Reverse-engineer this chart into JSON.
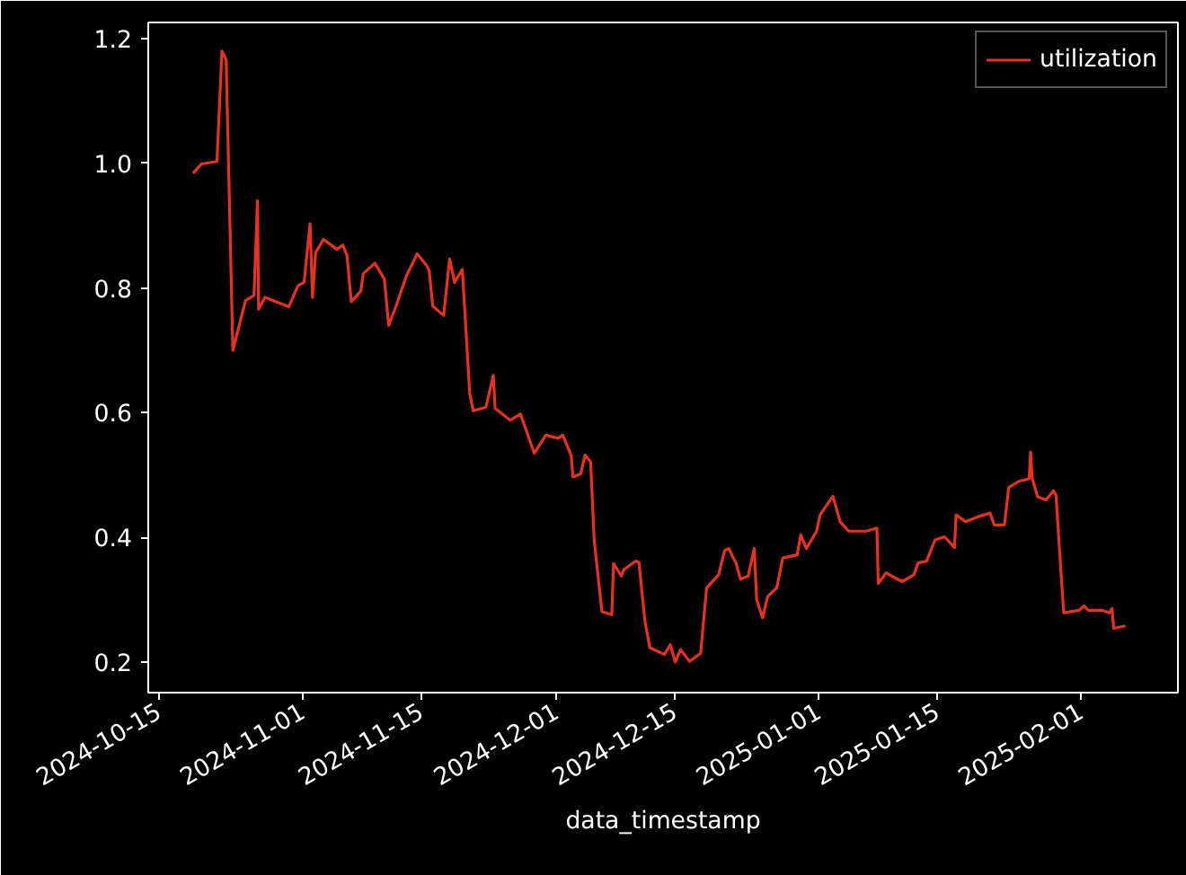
{
  "chart_data": {
    "type": "line",
    "xlabel": "data_timestamp",
    "legend": "top right",
    "grid": false,
    "line_style": "solid",
    "xlim": [
      "2024-10-13T19:00",
      "2025-02-12T12:00"
    ],
    "ylim": [
      0.151,
      1.226
    ],
    "xticks": [
      "2024-10-15",
      "2024-11-01",
      "2024-11-15",
      "2024-12-01",
      "2024-12-15",
      "2025-01-01",
      "2025-01-15",
      "2025-02-01"
    ],
    "yticks": [
      {
        "value": 0.2,
        "label": "0.2"
      },
      {
        "value": 0.4,
        "label": "0.4"
      },
      {
        "value": 0.6,
        "label": "0.6"
      },
      {
        "value": 0.8,
        "label": "0.8"
      },
      {
        "value": 1.0,
        "label": "1.0"
      },
      {
        "value": 1.2,
        "label": "1.2"
      }
    ],
    "x": [
      "2024-10-19T02:00",
      "2024-10-20T02:00",
      "2024-10-21T22:00",
      "2024-10-22T12:00",
      "2024-10-23T00:00",
      "2024-10-23T19:00",
      "2024-10-24T10:00",
      "2024-10-25T07:00",
      "2024-10-26T07:00",
      "2024-10-26T17:00",
      "2024-10-26T20:00",
      "2024-10-27T14:00",
      "2024-10-30T10:00",
      "2024-10-31T12:00",
      "2024-11-01T05:00",
      "2024-11-01T22:00",
      "2024-11-02T05:00",
      "2024-11-02T14:00",
      "2024-11-03T12:00",
      "2024-11-05T02:00",
      "2024-11-05T19:00",
      "2024-11-06T07:00",
      "2024-11-06T19:00",
      "2024-11-07T22:00",
      "2024-11-08T05:00",
      "2024-11-09T14:00",
      "2024-11-10T17:00",
      "2024-11-11T05:00",
      "2024-11-12T02:00",
      "2024-11-13T07:00",
      "2024-11-14T14:00",
      "2024-11-15T17:00",
      "2024-11-16T00:00",
      "2024-11-16T10:00",
      "2024-11-17T17:00",
      "2024-11-18T10:00",
      "2024-11-19T00:00",
      "2024-11-19T22:00",
      "2024-11-20T19:00",
      "2024-11-21T05:00",
      "2024-11-22T17:00",
      "2024-11-23T14:00",
      "2024-11-23T19:00",
      "2024-11-25T14:00",
      "2024-11-26T19:00",
      "2024-11-28T10:00",
      "2024-11-29T19:00",
      "2024-12-01T05:00",
      "2024-12-01T19:00",
      "2024-12-02T19:00",
      "2024-12-03T00:00",
      "2024-12-03T22:00",
      "2024-12-04T10:00",
      "2024-12-05T02:00",
      "2024-12-05T12:00",
      "2024-12-06T10:00",
      "2024-12-07T14:00",
      "2024-12-07T19:00",
      "2024-12-08T17:00",
      "2024-12-09T00:00",
      "2024-12-10T10:00",
      "2024-12-10T19:00",
      "2024-12-11T12:00",
      "2024-12-12T02:00",
      "2024-12-13T19:00",
      "2024-12-14T12:00",
      "2024-12-15T02:00",
      "2024-12-15T17:00",
      "2024-12-16T19:00",
      "2024-12-18T02:00",
      "2024-12-18T19:00",
      "2024-12-20T05:00",
      "2024-12-20T22:00",
      "2024-12-21T10:00",
      "2024-12-22T07:00",
      "2024-12-22T19:00",
      "2024-12-23T17:00",
      "2024-12-24T10:00",
      "2024-12-24T17:00",
      "2024-12-25T10:00",
      "2024-12-26T00:00",
      "2024-12-27T02:00",
      "2024-12-27T19:00",
      "2024-12-29T12:00",
      "2024-12-29T22:00",
      "2024-12-30T14:00",
      "2024-12-31T19:00",
      "2025-01-01T05:00",
      "2025-01-02T17:00",
      "2025-01-03T14:00",
      "2025-01-04T14:00",
      "2025-01-06T17:00",
      "2025-01-07T22:00",
      "2025-01-08T02:00",
      "2025-01-09T00:00",
      "2025-01-10T22:00",
      "2025-01-12T07:00",
      "2025-01-12T19:00",
      "2025-01-13T19:00",
      "2025-01-14T19:00",
      "2025-01-15T22:00",
      "2025-01-17T02:00",
      "2025-01-17T07:00",
      "2025-01-18T10:00",
      "2025-01-20T02:00",
      "2025-01-21T07:00",
      "2025-01-21T19:00",
      "2025-01-23T00:00",
      "2025-01-23T12:00",
      "2025-01-24T17:00",
      "2025-01-25T22:00",
      "2025-01-26T02:00",
      "2025-01-26T07:00",
      "2025-01-26T22:00",
      "2025-01-27T22:00",
      "2025-01-28T19:00",
      "2025-01-29T02:00",
      "2025-01-30T00:00",
      "2025-01-31T19:00",
      "2025-02-01T10:00",
      "2025-02-01T22:00",
      "2025-02-03T14:00",
      "2025-02-04T10:00",
      "2025-02-04T17:00",
      "2025-02-04T22:00",
      "2025-02-06T07:00"
    ],
    "series": [
      {
        "name": "utilization",
        "color": "#e8321e",
        "values": [
          0.984,
          0.999,
          1.003,
          1.18,
          1.166,
          0.7,
          0.733,
          0.78,
          0.788,
          0.94,
          0.766,
          0.785,
          0.77,
          0.804,
          0.809,
          0.903,
          0.785,
          0.857,
          0.878,
          0.862,
          0.869,
          0.852,
          0.778,
          0.795,
          0.823,
          0.84,
          0.814,
          0.74,
          0.771,
          0.819,
          0.855,
          0.836,
          0.828,
          0.771,
          0.756,
          0.847,
          0.809,
          0.83,
          0.631,
          0.603,
          0.609,
          0.66,
          0.607,
          0.588,
          0.598,
          0.535,
          0.564,
          0.559,
          0.564,
          0.531,
          0.497,
          0.502,
          0.532,
          0.521,
          0.396,
          0.281,
          0.276,
          0.358,
          0.338,
          0.348,
          0.362,
          0.36,
          0.266,
          0.223,
          0.212,
          0.228,
          0.2,
          0.22,
          0.201,
          0.214,
          0.319,
          0.34,
          0.379,
          0.382,
          0.358,
          0.333,
          0.338,
          0.382,
          0.3,
          0.271,
          0.305,
          0.319,
          0.367,
          0.372,
          0.404,
          0.382,
          0.41,
          0.436,
          0.466,
          0.425,
          0.41,
          0.41,
          0.415,
          0.326,
          0.343,
          0.329,
          0.34,
          0.359,
          0.362,
          0.396,
          0.401,
          0.384,
          0.436,
          0.425,
          0.434,
          0.439,
          0.42,
          0.42,
          0.48,
          0.49,
          0.494,
          0.537,
          0.494,
          0.465,
          0.46,
          0.475,
          0.468,
          0.279,
          0.283,
          0.29,
          0.283,
          0.283,
          0.279,
          0.286,
          0.254,
          0.258
        ]
      }
    ]
  }
}
